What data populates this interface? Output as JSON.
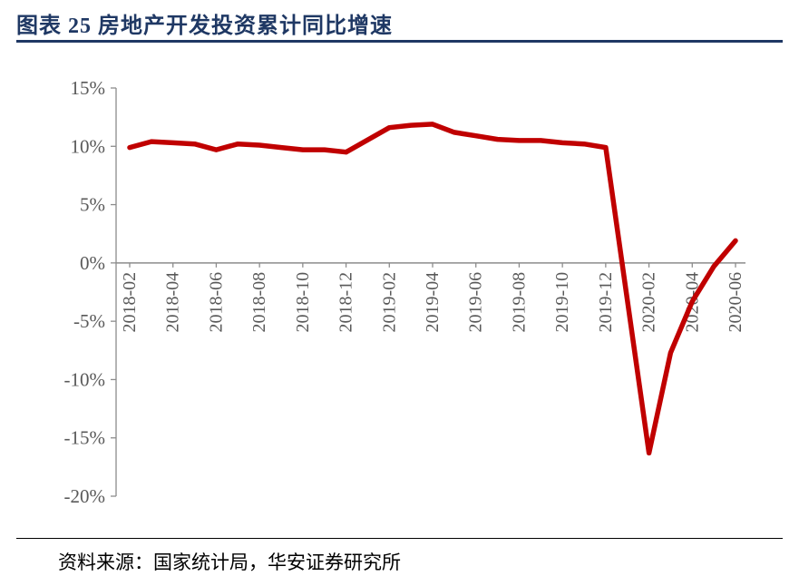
{
  "header": {
    "title": "图表 25  房地产开发投资累计同比增速"
  },
  "footer": {
    "source": "资料来源：国家统计局，华安证券研究所"
  },
  "colors": {
    "title": "#1F3864",
    "title_rule": "#1F3864",
    "line": "#C00000",
    "axis_text": "#595959",
    "axis_line": "#8C8C8C",
    "footer_rule": "#000000"
  },
  "chart_data": {
    "type": "line",
    "title": "房地产开发投资累计同比增速",
    "legend": "none",
    "grid": false,
    "ylim": [
      -20,
      15
    ],
    "y_tick_values": [
      15,
      10,
      5,
      0,
      -5,
      -10,
      -15,
      -20
    ],
    "y_tick_labels": [
      "15%",
      "10%",
      "5%",
      "0%",
      "-5%",
      "-10%",
      "-15%",
      "-20%"
    ],
    "x_tick_labels": [
      "2018-02",
      "2018-04",
      "2018-06",
      "2018-08",
      "2018-10",
      "2018-12",
      "2019-02",
      "2019-04",
      "2019-06",
      "2019-08",
      "2019-10",
      "2019-12",
      "2020-02",
      "2020-04",
      "2020-06"
    ],
    "line_color": "#C00000",
    "x": [
      "2018-02",
      "2018-03",
      "2018-04",
      "2018-05",
      "2018-06",
      "2018-07",
      "2018-08",
      "2018-09",
      "2018-10",
      "2018-11",
      "2018-12",
      "2019-02",
      "2019-03",
      "2019-04",
      "2019-05",
      "2019-06",
      "2019-07",
      "2019-08",
      "2019-09",
      "2019-10",
      "2019-11",
      "2019-12",
      "2020-02",
      "2020-03",
      "2020-04",
      "2020-05",
      "2020-06"
    ],
    "values": [
      9.9,
      10.4,
      10.3,
      10.2,
      9.7,
      10.2,
      10.1,
      9.9,
      9.7,
      9.7,
      9.5,
      11.6,
      11.8,
      11.9,
      11.2,
      10.9,
      10.6,
      10.5,
      10.5,
      10.3,
      10.2,
      9.9,
      -16.3,
      -7.7,
      -3.3,
      -0.3,
      1.9
    ]
  }
}
